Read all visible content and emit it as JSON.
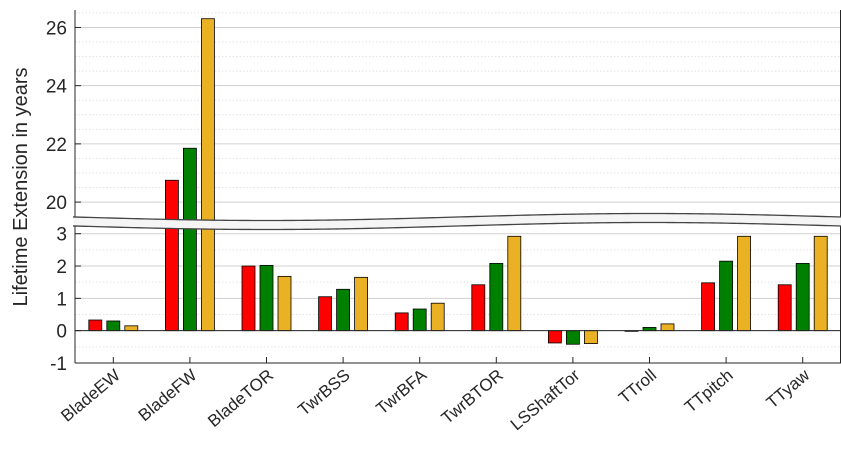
{
  "chart_data": {
    "type": "bar",
    "ylabel": "Lifetime Extension  in years",
    "broken_axis": true,
    "upper_axis": {
      "ylim": [
        19.35,
        26.6
      ],
      "ticks": [
        20,
        22,
        24,
        26
      ]
    },
    "lower_axis": {
      "ylim": [
        -1,
        3.3
      ],
      "ticks": [
        -1,
        0,
        1,
        2,
        3
      ]
    },
    "grid": "horizontal dotted minor and major",
    "categories": [
      "BladeEW",
      "BladeFW",
      "BladeTOR",
      "TwrBSS",
      "TwrBFA",
      "TwrBTOR",
      "LSShaftTor",
      "TTroll",
      "TTpitch",
      "TTyaw"
    ],
    "series": [
      {
        "color": "#ff0000",
        "values": [
          0.33,
          20.75,
          2.0,
          1.05,
          0.55,
          1.42,
          -0.38,
          -0.02,
          1.48,
          1.42
        ]
      },
      {
        "color": "#008000",
        "values": [
          0.3,
          21.85,
          2.02,
          1.28,
          0.67,
          2.08,
          -0.42,
          0.1,
          2.15,
          2.08
        ]
      },
      {
        "color": "#ebb125",
        "values": [
          0.15,
          26.3,
          1.68,
          1.65,
          0.85,
          2.92,
          -0.4,
          0.21,
          2.92,
          2.92
        ]
      }
    ]
  }
}
